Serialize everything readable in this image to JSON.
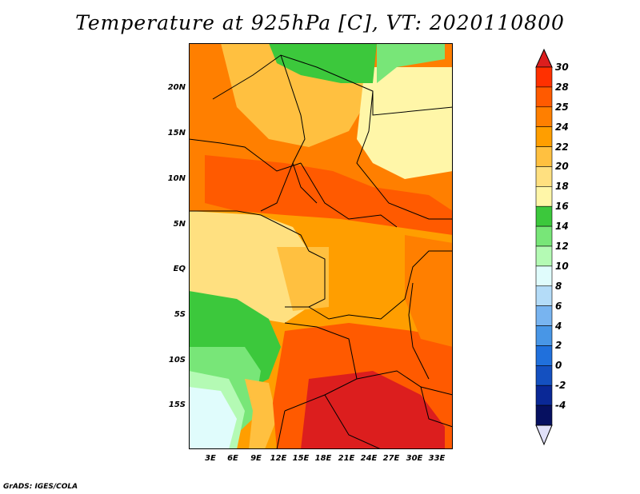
{
  "title": "Temperature at 925hPa [C], VT: 2020110800",
  "credit": "GrADS: IGES/COLA",
  "map": {
    "lat_labels": [
      "20N",
      "15N",
      "10N",
      "5N",
      "EQ",
      "5S",
      "10S",
      "15S"
    ],
    "lon_labels": [
      "3E",
      "6E",
      "9E",
      "12E",
      "15E",
      "18E",
      "21E",
      "24E",
      "27E",
      "30E",
      "33E"
    ]
  },
  "colorbar": {
    "labels": [
      "30",
      "28",
      "25",
      "24",
      "22",
      "20",
      "18",
      "16",
      "14",
      "12",
      "10",
      "8",
      "6",
      "4",
      "2",
      "0",
      "-2",
      "-4"
    ],
    "colors": [
      "#ff3000",
      "#ff5a00",
      "#ff7f00",
      "#ff9e00",
      "#ffc040",
      "#ffe080",
      "#fff6a8",
      "#3cc83c",
      "#78e678",
      "#b4fab4",
      "#e0fcfc",
      "#b4dcf8",
      "#78b4f0",
      "#4896e6",
      "#2070dc",
      "#1450c0",
      "#0a2896",
      "#061060"
    ],
    "top_color": "#dc1e1e",
    "bottom_color": "#e0e0f8"
  }
}
